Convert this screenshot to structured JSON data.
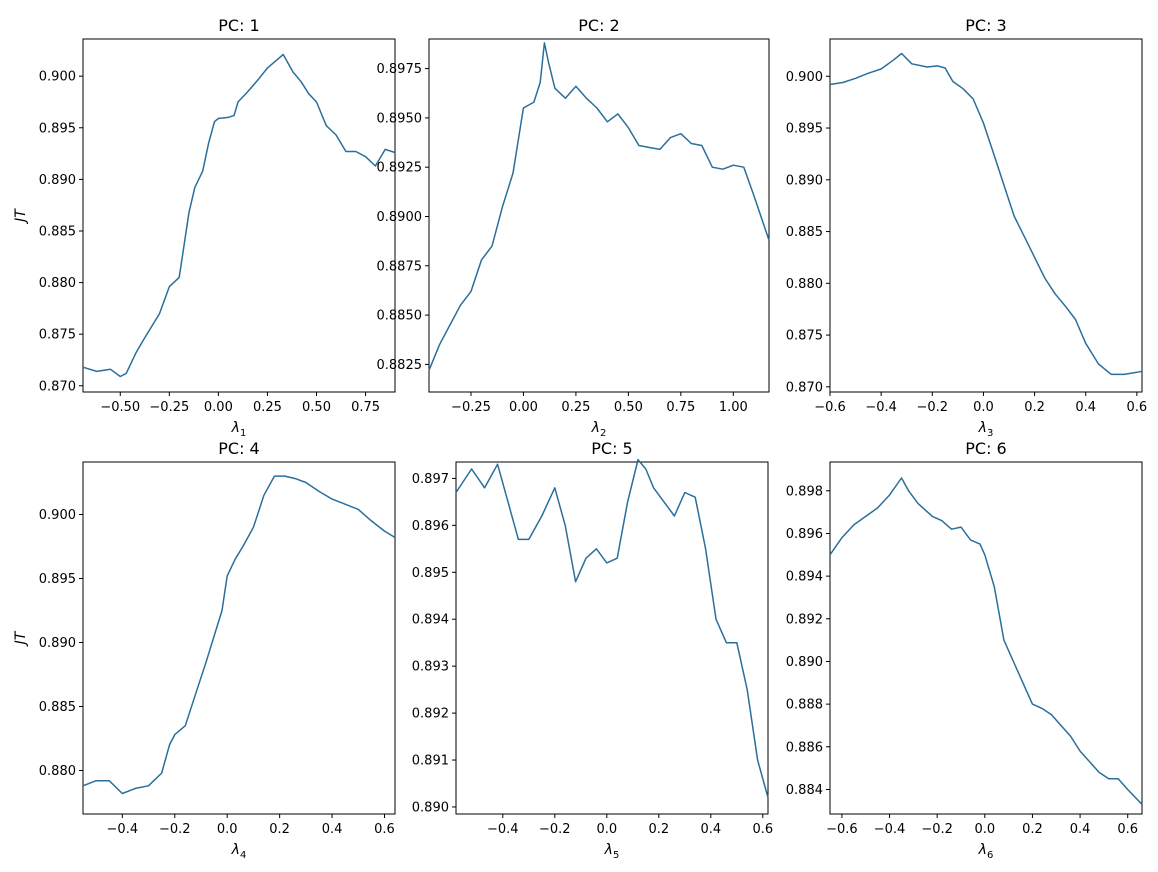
{
  "chart_data": [
    {
      "type": "line",
      "title": "PC: 1",
      "xlabel": "λ",
      "xsub": "1",
      "ylabel": "JT",
      "xlim": [
        -0.69,
        0.9
      ],
      "ylim": [
        0.8694,
        0.9036
      ],
      "xticks": [
        -0.5,
        -0.25,
        0.0,
        0.25,
        0.5,
        0.75
      ],
      "xtick_labels": [
        "−0.50",
        "−0.25",
        "0.00",
        "0.25",
        "0.50",
        "0.75"
      ],
      "yticks": [
        0.87,
        0.875,
        0.88,
        0.885,
        0.89,
        0.895,
        0.9
      ],
      "ytick_labels": [
        "0.870",
        "0.875",
        "0.880",
        "0.885",
        "0.890",
        "0.895",
        "0.900"
      ],
      "series": [
        {
          "color": "#2a6f9b",
          "x": [
            -0.69,
            -0.62,
            -0.55,
            -0.5,
            -0.47,
            -0.42,
            -0.38,
            -0.3,
            -0.25,
            -0.2,
            -0.18,
            -0.15,
            -0.12,
            -0.08,
            -0.05,
            -0.02,
            0.0,
            0.05,
            0.08,
            0.1,
            0.15,
            0.2,
            0.25,
            0.3,
            0.33,
            0.38,
            0.42,
            0.46,
            0.5,
            0.55,
            0.6,
            0.65,
            0.7,
            0.75,
            0.8,
            0.85,
            0.9
          ],
          "y": [
            0.8718,
            0.8714,
            0.8716,
            0.8709,
            0.8712,
            0.8732,
            0.8745,
            0.877,
            0.8796,
            0.8805,
            0.883,
            0.8868,
            0.8892,
            0.8908,
            0.8935,
            0.8956,
            0.8959,
            0.896,
            0.8962,
            0.8975,
            0.8985,
            0.8996,
            0.9008,
            0.9016,
            0.9021,
            0.9004,
            0.8995,
            0.8983,
            0.8975,
            0.8952,
            0.8943,
            0.8927,
            0.8927,
            0.8922,
            0.8913,
            0.8929,
            0.8926
          ]
        }
      ]
    },
    {
      "type": "line",
      "title": "PC: 2",
      "xlabel": "λ",
      "xsub": "2",
      "ylabel": "",
      "xlim": [
        -0.45,
        1.17
      ],
      "ylim": [
        0.8811,
        0.899
      ],
      "xticks": [
        -0.25,
        0.0,
        0.25,
        0.5,
        0.75,
        1.0
      ],
      "xtick_labels": [
        "−0.25",
        "0.00",
        "0.25",
        "0.50",
        "0.75",
        "1.00"
      ],
      "yticks": [
        0.8825,
        0.885,
        0.8875,
        0.89,
        0.8925,
        0.895,
        0.8975
      ],
      "ytick_labels": [
        "0.8825",
        "0.8850",
        "0.8875",
        "0.8900",
        "0.8925",
        "0.8950",
        "0.8975"
      ],
      "series": [
        {
          "color": "#2a6f9b",
          "x": [
            -0.45,
            -0.4,
            -0.35,
            -0.3,
            -0.25,
            -0.2,
            -0.15,
            -0.1,
            -0.05,
            0.0,
            0.05,
            0.08,
            0.1,
            0.12,
            0.15,
            0.2,
            0.25,
            0.3,
            0.35,
            0.4,
            0.45,
            0.5,
            0.55,
            0.6,
            0.65,
            0.7,
            0.75,
            0.8,
            0.85,
            0.9,
            0.95,
            1.0,
            1.05,
            1.1,
            1.17
          ],
          "y": [
            0.8822,
            0.8835,
            0.8845,
            0.8855,
            0.8862,
            0.8878,
            0.8885,
            0.8905,
            0.8922,
            0.8955,
            0.8958,
            0.8968,
            0.8988,
            0.8978,
            0.8965,
            0.896,
            0.8966,
            0.896,
            0.8955,
            0.8948,
            0.8952,
            0.8945,
            0.8936,
            0.8935,
            0.8934,
            0.894,
            0.8942,
            0.8937,
            0.8936,
            0.8925,
            0.8924,
            0.8926,
            0.8925,
            0.891,
            0.8888
          ]
        }
      ]
    },
    {
      "type": "line",
      "title": "PC: 3",
      "xlabel": "λ",
      "xsub": "3",
      "ylabel": "",
      "xlim": [
        -0.6,
        0.62
      ],
      "ylim": [
        0.8695,
        0.9036
      ],
      "xticks": [
        -0.6,
        -0.4,
        -0.2,
        0.0,
        0.2,
        0.4,
        0.6
      ],
      "xtick_labels": [
        "−0.6",
        "−0.4",
        "−0.2",
        "0.0",
        "0.2",
        "0.4",
        "0.6"
      ],
      "yticks": [
        0.87,
        0.875,
        0.88,
        0.885,
        0.89,
        0.895,
        0.9
      ],
      "ytick_labels": [
        "0.870",
        "0.875",
        "0.880",
        "0.885",
        "0.890",
        "0.895",
        "0.900"
      ],
      "series": [
        {
          "color": "#2a6f9b",
          "x": [
            -0.6,
            -0.55,
            -0.5,
            -0.45,
            -0.4,
            -0.35,
            -0.32,
            -0.28,
            -0.22,
            -0.18,
            -0.15,
            -0.12,
            -0.08,
            -0.04,
            0.0,
            0.04,
            0.08,
            0.12,
            0.16,
            0.2,
            0.24,
            0.28,
            0.32,
            0.36,
            0.4,
            0.45,
            0.5,
            0.55,
            0.6,
            0.62
          ],
          "y": [
            0.8992,
            0.8994,
            0.8998,
            0.9003,
            0.9007,
            0.9016,
            0.9022,
            0.9012,
            0.9009,
            0.901,
            0.9008,
            0.8995,
            0.8988,
            0.8978,
            0.8955,
            0.8925,
            0.8895,
            0.8865,
            0.8845,
            0.8825,
            0.8805,
            0.879,
            0.8778,
            0.8765,
            0.8742,
            0.8722,
            0.8712,
            0.8712,
            0.8714,
            0.8715
          ]
        }
      ]
    },
    {
      "type": "line",
      "title": "PC: 4",
      "xlabel": "λ",
      "xsub": "4",
      "ylabel": "JT",
      "xlim": [
        -0.55,
        0.64
      ],
      "ylim": [
        0.8766,
        0.9041
      ],
      "xticks": [
        -0.4,
        -0.2,
        0.0,
        0.2,
        0.4,
        0.6
      ],
      "xtick_labels": [
        "−0.4",
        "−0.2",
        "0.0",
        "0.2",
        "0.4",
        "0.6"
      ],
      "yticks": [
        0.88,
        0.885,
        0.89,
        0.895,
        0.9
      ],
      "ytick_labels": [
        "0.880",
        "0.885",
        "0.890",
        "0.895",
        "0.900"
      ],
      "series": [
        {
          "color": "#2a6f9b",
          "x": [
            -0.55,
            -0.5,
            -0.45,
            -0.4,
            -0.35,
            -0.3,
            -0.25,
            -0.22,
            -0.2,
            -0.16,
            -0.12,
            -0.08,
            -0.05,
            -0.02,
            0.0,
            0.03,
            0.06,
            0.1,
            0.14,
            0.18,
            0.22,
            0.26,
            0.3,
            0.35,
            0.4,
            0.45,
            0.5,
            0.55,
            0.6,
            0.64
          ],
          "y": [
            0.8788,
            0.8792,
            0.8792,
            0.8782,
            0.8786,
            0.8788,
            0.8798,
            0.882,
            0.8828,
            0.8835,
            0.886,
            0.8885,
            0.8905,
            0.8925,
            0.8952,
            0.8965,
            0.8975,
            0.899,
            0.9015,
            0.903,
            0.903,
            0.9028,
            0.9025,
            0.9018,
            0.9012,
            0.9008,
            0.9004,
            0.8995,
            0.8987,
            0.8982
          ]
        }
      ]
    },
    {
      "type": "line",
      "title": "PC: 5",
      "xlabel": "λ",
      "xsub": "5",
      "ylabel": "",
      "xlim": [
        -0.58,
        0.62
      ],
      "ylim": [
        0.88985,
        0.89735
      ],
      "xticks": [
        -0.4,
        -0.2,
        0.0,
        0.2,
        0.4,
        0.6
      ],
      "xtick_labels": [
        "−0.4",
        "−0.2",
        "0.0",
        "0.2",
        "0.4",
        "0.6"
      ],
      "yticks": [
        0.89,
        0.891,
        0.892,
        0.893,
        0.894,
        0.895,
        0.896,
        0.897
      ],
      "ytick_labels": [
        "0.890",
        "0.891",
        "0.892",
        "0.893",
        "0.894",
        "0.895",
        "0.896",
        "0.897"
      ],
      "series": [
        {
          "color": "#2a6f9b",
          "x": [
            -0.58,
            -0.52,
            -0.47,
            -0.42,
            -0.38,
            -0.34,
            -0.3,
            -0.25,
            -0.2,
            -0.16,
            -0.12,
            -0.08,
            -0.04,
            0.0,
            0.04,
            0.08,
            0.12,
            0.15,
            0.18,
            0.22,
            0.26,
            0.3,
            0.34,
            0.38,
            0.42,
            0.46,
            0.5,
            0.54,
            0.58,
            0.62
          ],
          "y": [
            0.8967,
            0.8972,
            0.8968,
            0.8973,
            0.8965,
            0.8957,
            0.8957,
            0.8962,
            0.8968,
            0.896,
            0.8948,
            0.8953,
            0.8955,
            0.8952,
            0.8953,
            0.8965,
            0.8974,
            0.8972,
            0.8968,
            0.8965,
            0.8962,
            0.8967,
            0.8966,
            0.8955,
            0.894,
            0.8935,
            0.8935,
            0.8925,
            0.891,
            0.8902
          ]
        }
      ]
    },
    {
      "type": "line",
      "title": "PC: 6",
      "xlabel": "λ",
      "xsub": "6",
      "ylabel": "",
      "xlim": [
        -0.65,
        0.66
      ],
      "ylim": [
        0.88285,
        0.89935
      ],
      "xticks": [
        -0.6,
        -0.4,
        -0.2,
        0.0,
        0.2,
        0.4,
        0.6
      ],
      "xtick_labels": [
        "−0.6",
        "−0.4",
        "−0.2",
        "0.0",
        "0.2",
        "0.4",
        "0.6"
      ],
      "yticks": [
        0.884,
        0.886,
        0.888,
        0.89,
        0.892,
        0.894,
        0.896,
        0.898
      ],
      "ytick_labels": [
        "0.884",
        "0.886",
        "0.888",
        "0.890",
        "0.892",
        "0.894",
        "0.896",
        "0.898"
      ],
      "series": [
        {
          "color": "#2a6f9b",
          "x": [
            -0.65,
            -0.6,
            -0.55,
            -0.5,
            -0.45,
            -0.4,
            -0.35,
            -0.32,
            -0.28,
            -0.22,
            -0.18,
            -0.14,
            -0.1,
            -0.06,
            -0.02,
            0.0,
            0.04,
            0.08,
            0.12,
            0.16,
            0.2,
            0.24,
            0.28,
            0.32,
            0.36,
            0.4,
            0.44,
            0.48,
            0.52,
            0.56,
            0.6,
            0.66
          ],
          "y": [
            0.895,
            0.8958,
            0.8964,
            0.8968,
            0.8972,
            0.8978,
            0.8986,
            0.898,
            0.8974,
            0.8968,
            0.8966,
            0.8962,
            0.8963,
            0.8957,
            0.8955,
            0.895,
            0.8935,
            0.891,
            0.89,
            0.889,
            0.888,
            0.8878,
            0.8875,
            0.887,
            0.8865,
            0.8858,
            0.8853,
            0.8848,
            0.8845,
            0.8845,
            0.884,
            0.8833
          ]
        }
      ]
    }
  ]
}
